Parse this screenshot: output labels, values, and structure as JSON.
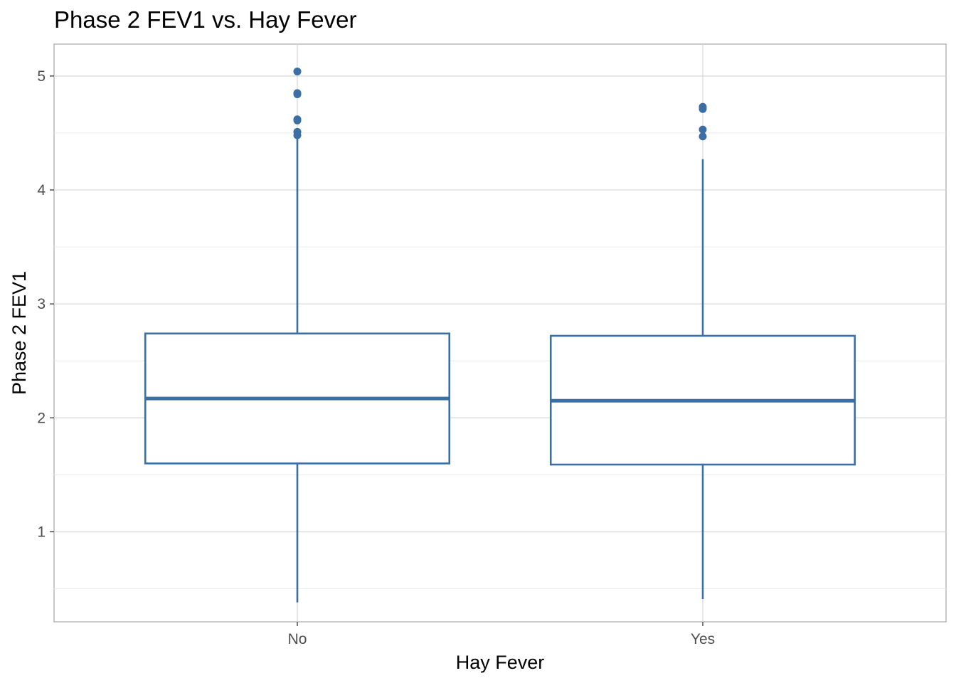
{
  "chart_data": {
    "type": "box",
    "title": "Phase 2 FEV1 vs. Hay Fever",
    "xlabel": "Hay Fever",
    "ylabel": "Phase 2 FEV1",
    "categories": [
      "No",
      "Yes"
    ],
    "ylim": [
      0.21,
      5.28
    ],
    "yticks": [
      1,
      2,
      3,
      4,
      5
    ],
    "grid": true,
    "box_color": "#3a6ea5",
    "boxes": [
      {
        "category": "No",
        "whisker_low": 0.38,
        "q1": 1.6,
        "median": 2.17,
        "q3": 2.74,
        "whisker_high": 4.47,
        "outliers": [
          5.04,
          4.85,
          4.84,
          4.62,
          4.61,
          4.51,
          4.48
        ]
      },
      {
        "category": "Yes",
        "whisker_low": 0.41,
        "q1": 1.59,
        "median": 2.15,
        "q3": 2.72,
        "whisker_high": 4.27,
        "outliers": [
          4.73,
          4.71,
          4.53,
          4.47
        ]
      }
    ]
  }
}
